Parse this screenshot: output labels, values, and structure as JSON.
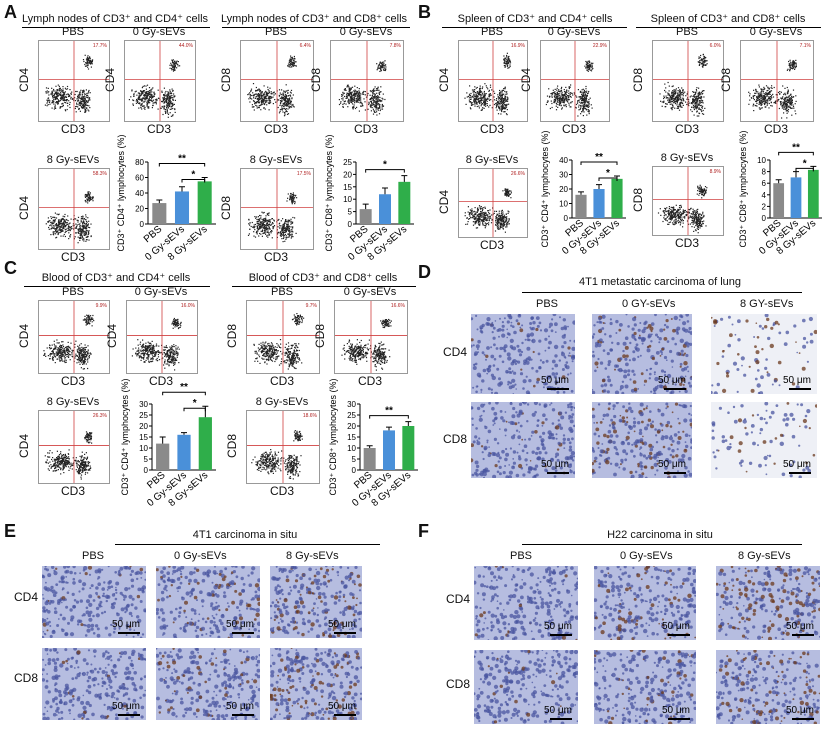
{
  "panels": {
    "A": {
      "letter": "A",
      "left_title": "Lymph nodes of CD3⁺ and CD4⁺ cells",
      "right_title": "Lymph nodes of CD3⁺ and CD8⁺ cells",
      "groups": [
        "PBS",
        "0 Gy-sEVs",
        "8 Gy-sEVs"
      ]
    },
    "B": {
      "letter": "B",
      "left_title": "Spleen of CD3⁺ and CD4⁺ cells",
      "right_title": "Spleen of CD3⁺ and CD8⁺ cells",
      "groups": [
        "PBS",
        "0 Gy-sEVs",
        "8 Gy-sEVs"
      ]
    },
    "C": {
      "letter": "C",
      "left_title": "Blood of CD3⁺  and CD4⁺ cells",
      "right_title": "Blood of CD3⁺ and CD8⁺ cells",
      "groups": [
        "PBS",
        "0 Gy-sEVs",
        "8 Gy-sEVs"
      ]
    },
    "D": {
      "letter": "D",
      "title": "4T1 metastatic carcinoma of lung",
      "cols": [
        "PBS",
        "0 GY-sEVs",
        "8 GY-sEVs"
      ],
      "rows": [
        "CD4",
        "CD8"
      ],
      "scale": "50 μm"
    },
    "E": {
      "letter": "E",
      "title": "4T1 carcinoma in situ",
      "cols": [
        "PBS",
        "0 Gy-sEVs",
        "8 Gy-sEVs"
      ],
      "rows": [
        "CD4",
        "CD8"
      ],
      "scale": "50 μm"
    },
    "F": {
      "letter": "F",
      "title": "H22 carcinoma in situ",
      "cols": [
        "PBS",
        "0 Gy-sEVs",
        "8 Gy-sEVs"
      ],
      "rows": [
        "CD4",
        "CD8"
      ],
      "scale": "50 μm"
    }
  },
  "axes": {
    "cd3": "CD3",
    "cd4": "CD4",
    "cd8": "CD8"
  },
  "bar_ylabels": {
    "cd4": "CD3⁺ CD4⁺ lymphocytes (%)",
    "cd8": "CD3⁺ CD8⁺ lymphocytes (%)"
  },
  "bar_colors": [
    "#8a8a8a",
    "#4a90d9",
    "#2fae4a"
  ],
  "chart_data": [
    {
      "id": "A-CD4",
      "type": "bar",
      "categories": [
        "PBS",
        "0 Gy-sEVs",
        "8 Gy-sEVs"
      ],
      "values": [
        27,
        42,
        55
      ],
      "errors": [
        4,
        6,
        5
      ],
      "ylim": [
        0,
        80
      ],
      "yticks": [
        0,
        20,
        40,
        60,
        80
      ],
      "sig": [
        {
          "from": 0,
          "to": 2,
          "label": "**"
        },
        {
          "from": 1,
          "to": 2,
          "label": "*"
        }
      ]
    },
    {
      "id": "A-CD8",
      "type": "bar",
      "categories": [
        "PBS",
        "0 Gy-sEVs",
        "8 Gy-sEVs"
      ],
      "values": [
        6,
        12,
        17
      ],
      "errors": [
        2,
        2.5,
        2.5
      ],
      "ylim": [
        0,
        25
      ],
      "yticks": [
        0,
        5,
        10,
        15,
        20,
        25
      ],
      "sig": [
        {
          "from": 0,
          "to": 2,
          "label": "*"
        }
      ]
    },
    {
      "id": "B-CD4",
      "type": "bar",
      "categories": [
        "PBS",
        "0 Gy-sEVs",
        "8 Gy-sEVs"
      ],
      "values": [
        16,
        20,
        27
      ],
      "errors": [
        2,
        3,
        2
      ],
      "ylim": [
        0,
        40
      ],
      "yticks": [
        0,
        10,
        20,
        30,
        40
      ],
      "sig": [
        {
          "from": 0,
          "to": 2,
          "label": "**"
        },
        {
          "from": 1,
          "to": 2,
          "label": "*"
        }
      ]
    },
    {
      "id": "B-CD8",
      "type": "bar",
      "categories": [
        "PBS",
        "0 Gy-sEVs",
        "8 Gy-sEVs"
      ],
      "values": [
        6,
        7,
        8.3
      ],
      "errors": [
        0.6,
        1,
        0.6
      ],
      "ylim": [
        0,
        10
      ],
      "yticks": [
        0,
        2,
        4,
        6,
        8,
        10
      ],
      "sig": [
        {
          "from": 0,
          "to": 2,
          "label": "**"
        },
        {
          "from": 1,
          "to": 2,
          "label": "*"
        }
      ]
    },
    {
      "id": "C-CD4",
      "type": "bar",
      "categories": [
        "PBS",
        "0 Gy-sEVs",
        "8 Gy-sEVs"
      ],
      "values": [
        12,
        16,
        24
      ],
      "errors": [
        3,
        1,
        5
      ],
      "ylim": [
        0,
        30
      ],
      "yticks": [
        0,
        5,
        10,
        15,
        20,
        25,
        30
      ],
      "sig": [
        {
          "from": 0,
          "to": 2,
          "label": "**"
        },
        {
          "from": 1,
          "to": 2,
          "label": "*"
        }
      ]
    },
    {
      "id": "C-CD8",
      "type": "bar",
      "categories": [
        "PBS",
        "0 Gy-sEVs",
        "8 Gy-sEVs"
      ],
      "values": [
        10,
        18,
        20
      ],
      "errors": [
        1,
        1.5,
        2
      ],
      "ylim": [
        0,
        30
      ],
      "yticks": [
        0,
        5,
        10,
        15,
        20,
        25,
        30
      ],
      "sig": [
        {
          "from": 0,
          "to": 2,
          "label": "**"
        }
      ]
    }
  ],
  "flow_quadrants": {
    "A-CD4": [
      [
        "2.5%",
        "17.7%"
      ],
      [
        "44.0%",
        "58.3%"
      ]
    ],
    "A-CD8": [
      [
        "2.2%",
        "6.4%"
      ],
      [
        "7.8%",
        "17.5%"
      ]
    ],
    "B-CD4": [
      [
        "1.5%",
        "16.9%"
      ],
      [
        "22.9%",
        "26.6%"
      ]
    ],
    "B-CD8": [
      [
        "0.9%",
        "6.0%"
      ],
      [
        "7.1%",
        "8.9%"
      ]
    ],
    "C-CD4": [
      [
        "0.8%",
        "9.9%"
      ],
      [
        "16.0%",
        "26.3%"
      ]
    ],
    "C-CD8": [
      [
        "0.6%",
        "9.7%"
      ],
      [
        "16.6%",
        "18.6%"
      ]
    ]
  }
}
